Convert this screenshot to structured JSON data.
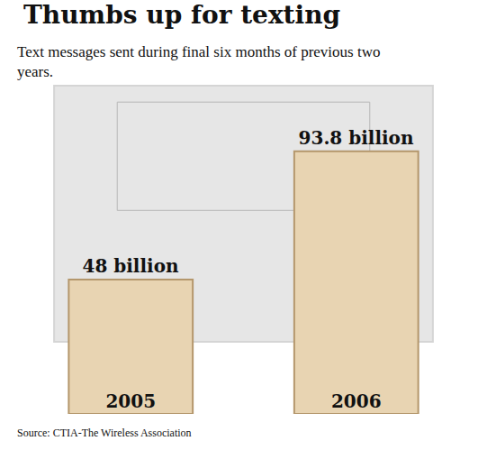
{
  "chart_data": {
    "type": "bar",
    "title": "Thumbs up for texting",
    "subtitle": "Text messages sent during final six months of previous two years.",
    "source": "Source: CTIA-The Wireless Association",
    "categories": [
      "2005",
      "2006"
    ],
    "values": [
      48,
      93.8
    ],
    "value_labels": [
      "48 billion",
      "93.8 billion"
    ],
    "data_labels": true,
    "color": "#e8d4b2",
    "tick_labels": "x",
    "grid": false
  }
}
